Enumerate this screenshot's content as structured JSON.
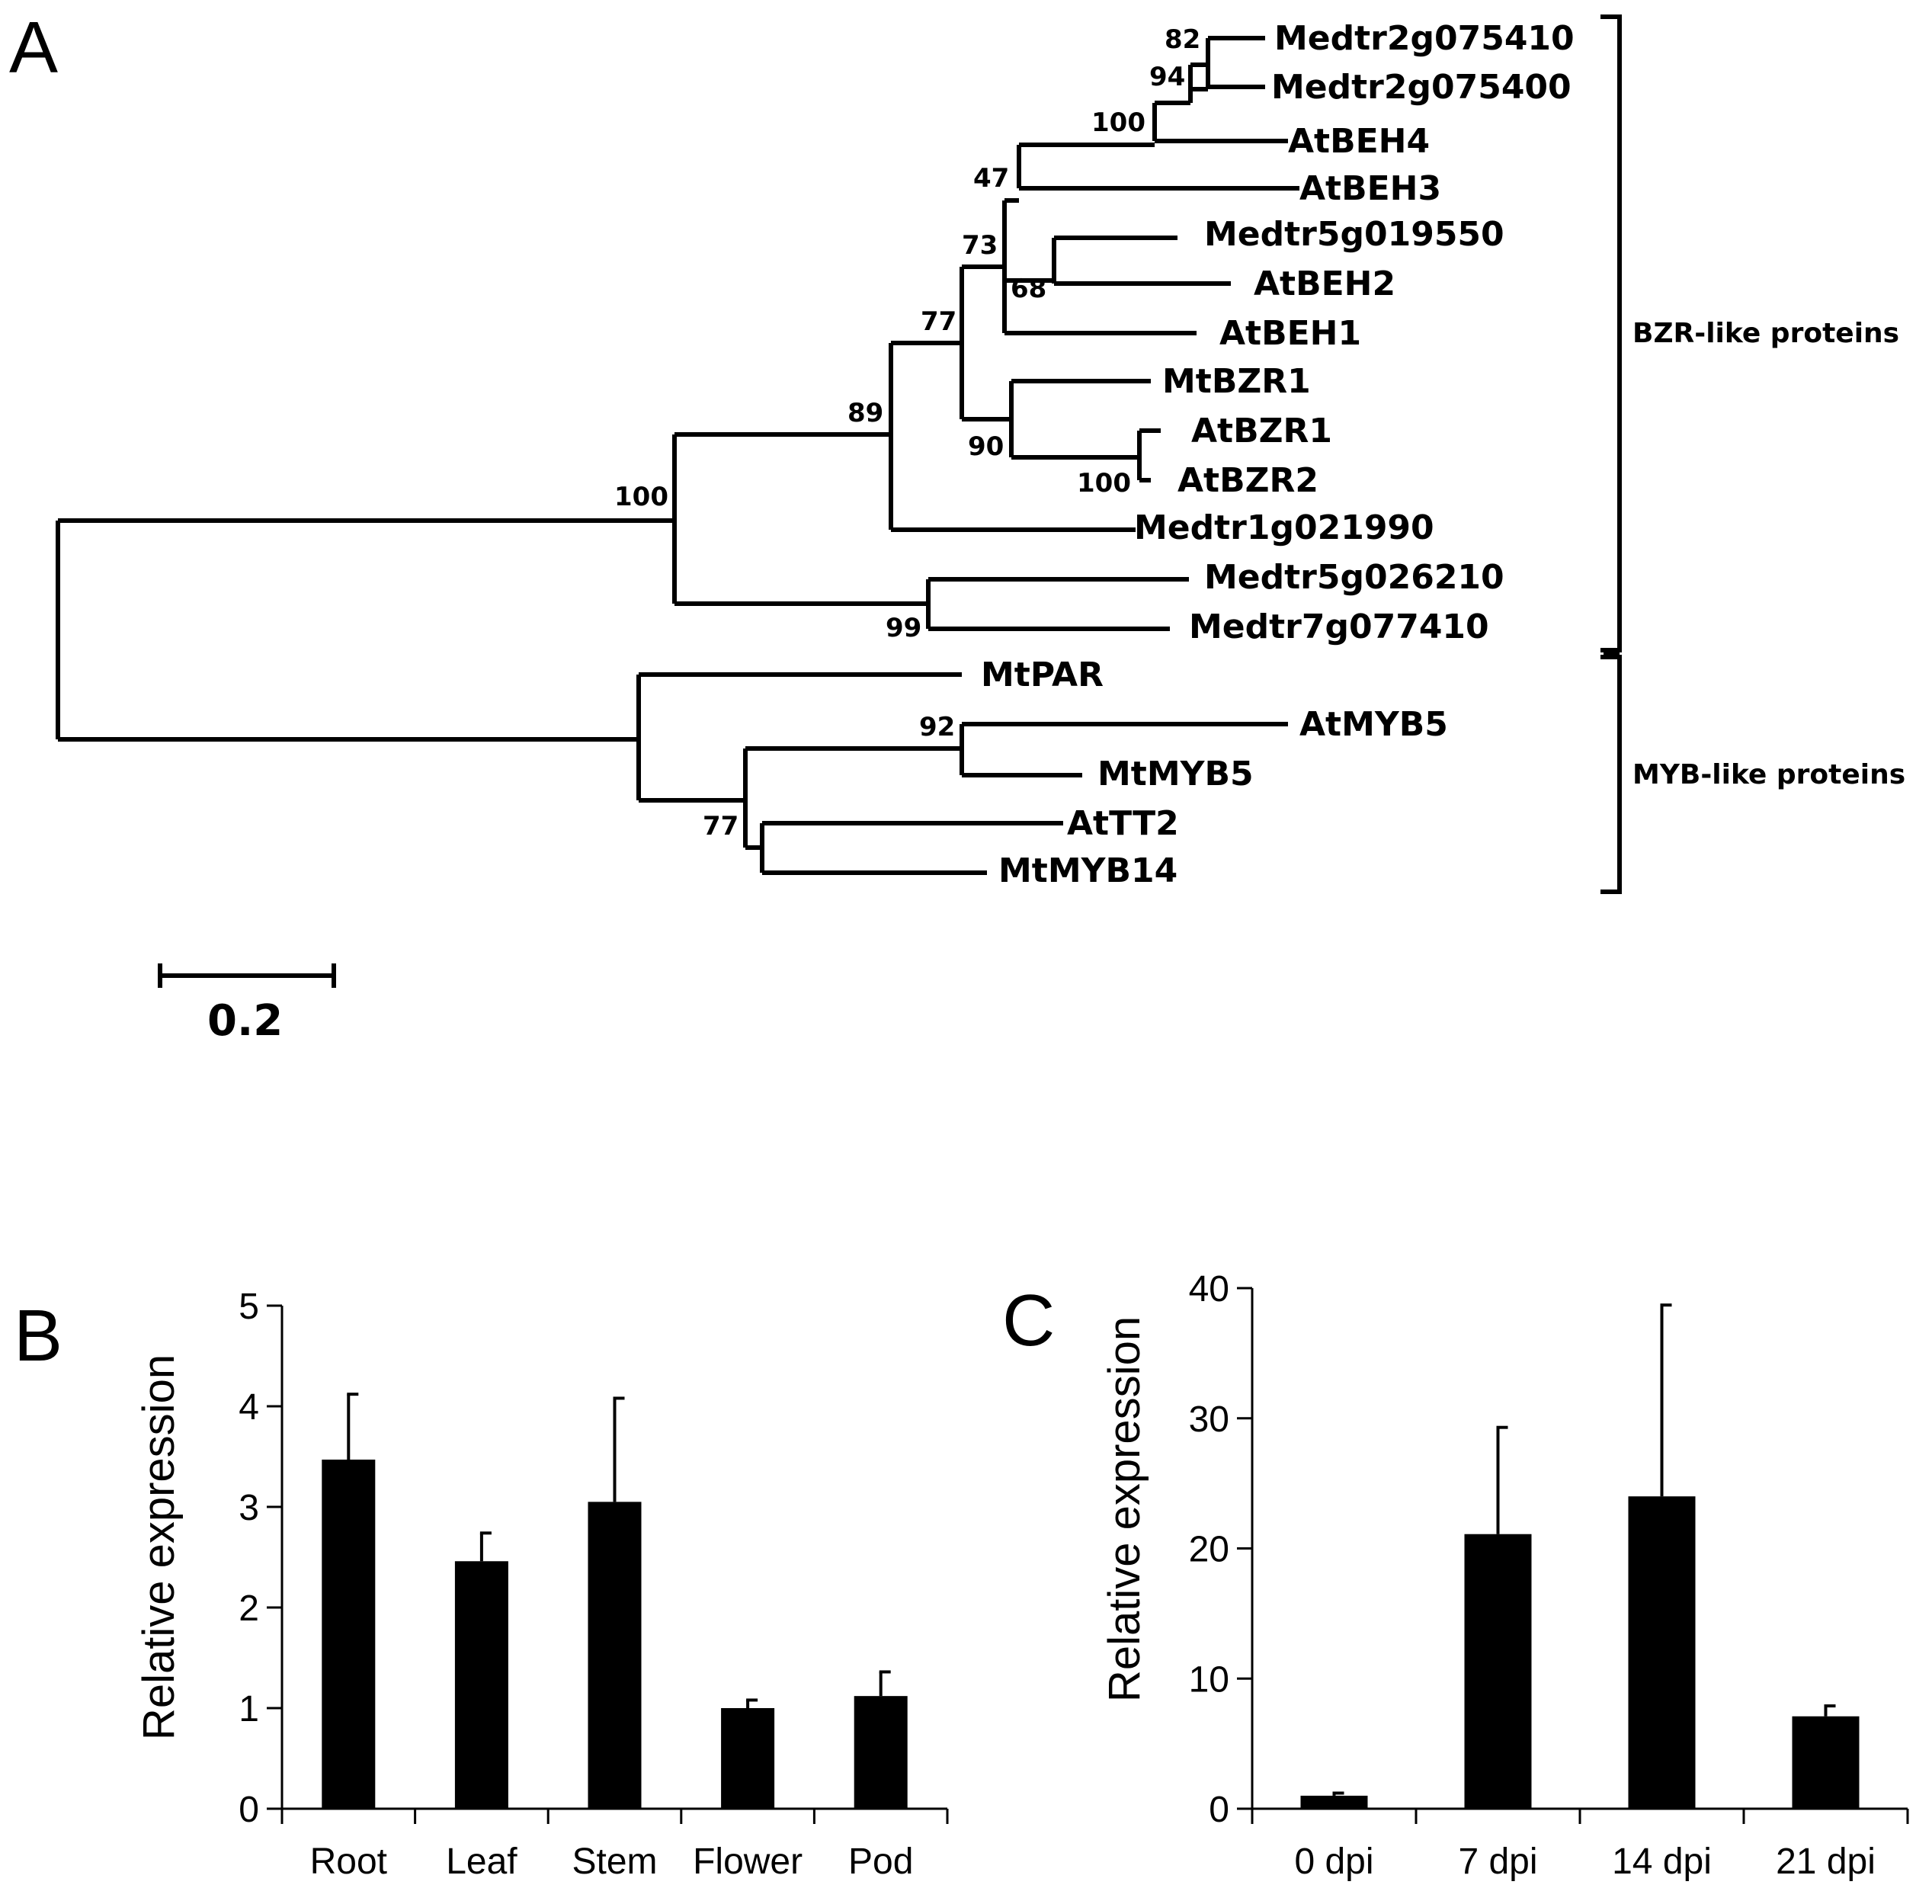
{
  "panels": {
    "a": "A",
    "b": "B",
    "c": "C"
  },
  "tree": {
    "leaves": [
      "Medtr2g075410",
      "Medtr2g075400",
      "AtBEH4",
      "AtBEH3",
      "Medtr5g019550",
      "AtBEH2",
      "AtBEH1",
      "MtBZR1",
      "AtBZR1",
      "AtBZR2",
      "Medtr1g021990",
      "Medtr5g026210",
      "Medtr7g077410",
      "MtPAR",
      "AtMYB5",
      "MtMYB5",
      "AtTT2",
      "MtMYB14"
    ],
    "bootstrap": {
      "n_2g": "82",
      "n_beh4": "94",
      "n_beh34": "100",
      "n_beh_big": "47",
      "n_beh2": "68",
      "n_beh1": "73",
      "n_beh_bzr": "77",
      "n_bzr": "90",
      "n_atbzr": "100",
      "n_bzr_all": "89",
      "n_bzr_root": "100",
      "n_5g7g": "99",
      "n_myb5": "92",
      "n_tt2": "77"
    },
    "clades": {
      "bzr": "BZR-like proteins",
      "myb": "MYB-like proteins"
    },
    "scale_label": "0.2",
    "scale_value": 0.2
  },
  "chart_data": [
    {
      "panel": "B",
      "type": "bar",
      "categories": [
        "Root",
        "Leaf",
        "Stem",
        "Flower",
        "Pod"
      ],
      "values": [
        3.47,
        2.46,
        3.05,
        1.0,
        1.12
      ],
      "errors": [
        0.65,
        0.28,
        1.03,
        0.08,
        0.24
      ],
      "ylabel": "Relative expression",
      "xlabel": "",
      "ylim": [
        0,
        5
      ],
      "yticks": [
        "0",
        "1",
        "2",
        "3",
        "4",
        "5"
      ],
      "bar_color": "#000000"
    },
    {
      "panel": "C",
      "type": "bar",
      "categories": [
        "0 dpi",
        "7 dpi",
        "14 dpi",
        "21 dpi"
      ],
      "values": [
        1.0,
        21.1,
        24.0,
        7.1
      ],
      "errors": [
        0.2,
        8.2,
        14.7,
        0.8
      ],
      "ylabel": "Relative expression",
      "xlabel": "",
      "ylim": [
        0,
        40
      ],
      "yticks": [
        "0",
        "10",
        "20",
        "30",
        "40"
      ],
      "bar_color": "#000000"
    }
  ]
}
